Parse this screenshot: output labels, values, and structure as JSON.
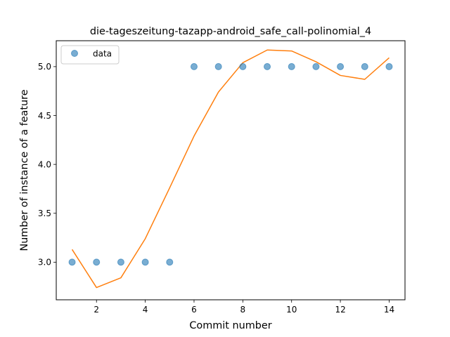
{
  "chart_data": {
    "type": "scatter",
    "title": "die-tageszeitung-tazapp-android_safe_call-polinomial_4",
    "xlabel": "Commit number",
    "ylabel": "Number of instance of a feature",
    "xlim": [
      0.35,
      14.65
    ],
    "ylim": [
      2.615,
      5.265
    ],
    "xticks": [
      2,
      4,
      6,
      8,
      10,
      12,
      14
    ],
    "xtick_labels": [
      "2",
      "4",
      "6",
      "8",
      "10",
      "12",
      "14"
    ],
    "yticks": [
      3.0,
      3.5,
      4.0,
      4.5,
      5.0
    ],
    "ytick_labels": [
      "3.0",
      "3.5",
      "4.0",
      "4.5",
      "5.0"
    ],
    "grid": false,
    "legend": {
      "position": "top-left",
      "entries": [
        "data"
      ]
    },
    "series": [
      {
        "name": "data",
        "kind": "scatter",
        "color": "#1f77b4",
        "x": [
          1,
          2,
          3,
          4,
          5,
          6,
          7,
          8,
          9,
          10,
          11,
          12,
          13,
          14
        ],
        "y": [
          3,
          3,
          3,
          3,
          3,
          5,
          5,
          5,
          5,
          5,
          5,
          5,
          5,
          5
        ]
      },
      {
        "kind": "line",
        "color": "#ff7f0e",
        "x": [
          1,
          2,
          3,
          4,
          5,
          6,
          7,
          8,
          9,
          10,
          11,
          12,
          13,
          14
        ],
        "y": [
          3.13,
          2.74,
          2.84,
          3.24,
          3.76,
          4.29,
          4.74,
          5.04,
          5.17,
          5.16,
          5.05,
          4.91,
          4.87,
          5.09
        ]
      }
    ]
  }
}
